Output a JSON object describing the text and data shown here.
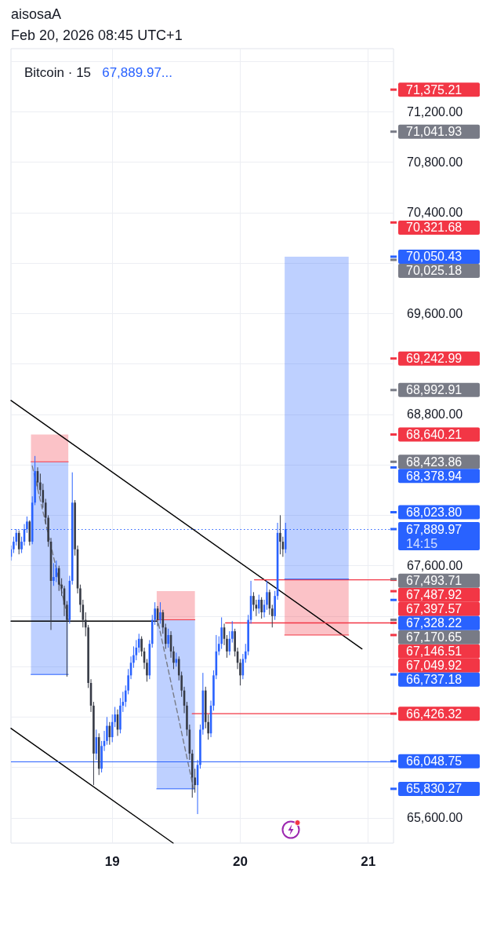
{
  "chart_data": {
    "type": "candlestick",
    "title": "Bitcoin · 15",
    "annotations": [
      "aisosaA",
      "Feb 20, 2026 08:45 UTC+1",
      "67,889.97...",
      "14:15"
    ],
    "xlim": [
      "2026-02-18T05:00",
      "2026-02-21T04:45"
    ],
    "xticks": [
      {
        "value": "2026-02-19",
        "label": "19"
      },
      {
        "value": "2026-02-20",
        "label": "20"
      },
      {
        "value": "2026-02-21",
        "label": "21"
      }
    ],
    "ylim": [
      65400,
      71700
    ],
    "yticks": [
      {
        "value": 71600,
        "label": null
      },
      {
        "value": 71200,
        "label": "71,200.00"
      },
      {
        "value": 70800,
        "label": "70,800.00"
      },
      {
        "value": 70400,
        "label": "70,400.00"
      },
      {
        "value": 70000,
        "label": null
      },
      {
        "value": 69600,
        "label": "69,600.00"
      },
      {
        "value": 69200,
        "label": null
      },
      {
        "value": 68800,
        "label": "68,800.00"
      },
      {
        "value": 68400,
        "label": null
      },
      {
        "value": 68000,
        "label": null
      },
      {
        "value": 67600,
        "label": "67,600.00"
      },
      {
        "value": 67200,
        "label": null
      },
      {
        "value": 66800,
        "label": null
      },
      {
        "value": 66400,
        "label": null
      },
      {
        "value": 66000,
        "label": null
      },
      {
        "value": 65600,
        "label": "65,600.00"
      }
    ],
    "grid": true,
    "ref_lines": [
      {
        "axis": "y",
        "value": 66048.75,
        "color": "#2962ff",
        "line_style": "solid"
      },
      {
        "axis": "y",
        "value": 67889.97,
        "color": "#2962ff",
        "line_style": "dotted"
      }
    ],
    "x": [
      "2026-02-18T05:00",
      "2026-02-18T05:30",
      "2026-02-18T06:00",
      "2026-02-18T06:30",
      "2026-02-18T07:00",
      "2026-02-18T07:30",
      "2026-02-18T08:00",
      "2026-02-18T08:30",
      "2026-02-18T09:00",
      "2026-02-18T09:30",
      "2026-02-18T10:00",
      "2026-02-18T10:30",
      "2026-02-18T11:00",
      "2026-02-18T11:30",
      "2026-02-18T12:00",
      "2026-02-18T12:30",
      "2026-02-18T13:00",
      "2026-02-18T13:30",
      "2026-02-18T14:00",
      "2026-02-18T14:30",
      "2026-02-18T15:00",
      "2026-02-18T15:30",
      "2026-02-18T16:00",
      "2026-02-18T16:30",
      "2026-02-18T17:00",
      "2026-02-18T17:30",
      "2026-02-18T18:00",
      "2026-02-18T18:30",
      "2026-02-18T19:00",
      "2026-02-18T19:30",
      "2026-02-18T20:00",
      "2026-02-18T20:30",
      "2026-02-18T21:00",
      "2026-02-18T21:30",
      "2026-02-18T22:00",
      "2026-02-18T22:30",
      "2026-02-18T23:00",
      "2026-02-18T23:30",
      "2026-02-19T00:00",
      "2026-02-19T00:30",
      "2026-02-19T01:00",
      "2026-02-19T01:30",
      "2026-02-19T02:00",
      "2026-02-19T02:30",
      "2026-02-19T03:00",
      "2026-02-19T03:30",
      "2026-02-19T04:00",
      "2026-02-19T04:30",
      "2026-02-19T05:00",
      "2026-02-19T05:30",
      "2026-02-19T06:00",
      "2026-02-19T06:30",
      "2026-02-19T07:00",
      "2026-02-19T07:30",
      "2026-02-19T08:00",
      "2026-02-19T08:30",
      "2026-02-19T09:00",
      "2026-02-19T09:30",
      "2026-02-19T10:00",
      "2026-02-19T10:30",
      "2026-02-19T11:00",
      "2026-02-19T11:30",
      "2026-02-19T12:00",
      "2026-02-19T12:30",
      "2026-02-19T13:00",
      "2026-02-19T13:30",
      "2026-02-19T14:00",
      "2026-02-19T14:30",
      "2026-02-19T15:00",
      "2026-02-19T15:30",
      "2026-02-19T16:00",
      "2026-02-19T16:30",
      "2026-02-19T17:00",
      "2026-02-19T17:30",
      "2026-02-19T18:00",
      "2026-02-19T18:30",
      "2026-02-19T19:00",
      "2026-02-19T19:30",
      "2026-02-19T20:00",
      "2026-02-19T20:30",
      "2026-02-19T21:00",
      "2026-02-19T21:30",
      "2026-02-19T22:00",
      "2026-02-19T22:30",
      "2026-02-19T23:00",
      "2026-02-19T23:30",
      "2026-02-20T00:00",
      "2026-02-20T00:30",
      "2026-02-20T01:00",
      "2026-02-20T01:30",
      "2026-02-20T02:00",
      "2026-02-20T02:30",
      "2026-02-20T03:00",
      "2026-02-20T03:30",
      "2026-02-20T04:00",
      "2026-02-20T04:30",
      "2026-02-20T05:00",
      "2026-02-20T05:30",
      "2026-02-20T06:00",
      "2026-02-20T06:30",
      "2026-02-20T07:00",
      "2026-02-20T07:30",
      "2026-02-20T08:00",
      "2026-02-20T08:30"
    ],
    "ohlc": [
      [
        67670,
        67760,
        67640,
        67730
      ],
      [
        67730,
        67830,
        67700,
        67790
      ],
      [
        67790,
        67890,
        67760,
        67860
      ],
      [
        67860,
        67880,
        67690,
        67730
      ],
      [
        67730,
        67830,
        67700,
        67790
      ],
      [
        67790,
        67930,
        67760,
        67890
      ],
      [
        67890,
        67990,
        67860,
        67950
      ],
      [
        67950,
        67960,
        67760,
        67790
      ],
      [
        67790,
        68150,
        67770,
        68100
      ],
      [
        68100,
        68470,
        68080,
        68350
      ],
      [
        68350,
        68380,
        68210,
        68260
      ],
      [
        68260,
        68330,
        68150,
        68200
      ],
      [
        68200,
        68250,
        68060,
        68100
      ],
      [
        68100,
        68130,
        67930,
        67980
      ],
      [
        67980,
        68000,
        67750,
        67790
      ],
      [
        67790,
        67820,
        67090,
        67480
      ],
      [
        67480,
        67620,
        67440,
        67510
      ],
      [
        67510,
        67640,
        67470,
        67580
      ],
      [
        67580,
        67600,
        67400,
        67450
      ],
      [
        67450,
        67500,
        67360,
        67420
      ],
      [
        67420,
        67440,
        67200,
        67290
      ],
      [
        67290,
        67320,
        66720,
        67170
      ],
      [
        67170,
        67520,
        67140,
        67480
      ],
      [
        67480,
        68340,
        67450,
        68100
      ],
      [
        68100,
        68120,
        67680,
        67730
      ],
      [
        67730,
        67760,
        67380,
        67420
      ],
      [
        67420,
        67450,
        67230,
        67290
      ],
      [
        67290,
        67330,
        67110,
        67170
      ],
      [
        67170,
        67230,
        67040,
        67110
      ],
      [
        67110,
        67130,
        66630,
        66670
      ],
      [
        66670,
        66700,
        66440,
        66490
      ],
      [
        66490,
        66520,
        65860,
        66110
      ],
      [
        66110,
        66300,
        66060,
        66240
      ],
      [
        66240,
        66270,
        65940,
        65990
      ],
      [
        65990,
        66210,
        65960,
        66170
      ],
      [
        66170,
        66290,
        66130,
        66210
      ],
      [
        66210,
        66400,
        66180,
        66330
      ],
      [
        66330,
        66360,
        66180,
        66240
      ],
      [
        66240,
        66420,
        66200,
        66360
      ],
      [
        66360,
        66480,
        66320,
        66420
      ],
      [
        66420,
        66460,
        66250,
        66300
      ],
      [
        66300,
        66550,
        66270,
        66490
      ],
      [
        66490,
        66600,
        66440,
        66520
      ],
      [
        66520,
        66650,
        66480,
        66610
      ],
      [
        66610,
        66780,
        66580,
        66730
      ],
      [
        66730,
        66880,
        66700,
        66830
      ],
      [
        66830,
        66960,
        66790,
        66890
      ],
      [
        66890,
        67010,
        66850,
        66950
      ],
      [
        66950,
        67060,
        66910,
        67020
      ],
      [
        67020,
        67040,
        66880,
        66920
      ],
      [
        66920,
        66950,
        66780,
        66830
      ],
      [
        66830,
        66860,
        66680,
        66730
      ],
      [
        66730,
        67010,
        66700,
        66980
      ],
      [
        66980,
        67210,
        66950,
        67170
      ],
      [
        67170,
        67310,
        67130,
        67260
      ],
      [
        67260,
        67280,
        67120,
        67170
      ],
      [
        67170,
        67310,
        67140,
        67230
      ],
      [
        67230,
        67250,
        67060,
        67110
      ],
      [
        67110,
        67140,
        66940,
        66980
      ],
      [
        66980,
        67100,
        66950,
        67050
      ],
      [
        67050,
        67080,
        66870,
        66920
      ],
      [
        66920,
        66960,
        66780,
        66830
      ],
      [
        66830,
        66910,
        66800,
        66860
      ],
      [
        66860,
        66880,
        66690,
        66730
      ],
      [
        66730,
        66760,
        66560,
        66610
      ],
      [
        66610,
        66640,
        66430,
        66490
      ],
      [
        66490,
        66520,
        66250,
        66300
      ],
      [
        66300,
        66340,
        66060,
        66110
      ],
      [
        66110,
        66140,
        65760,
        65920
      ],
      [
        65920,
        65990,
        65800,
        65860
      ],
      [
        65860,
        66060,
        65630,
        66020
      ],
      [
        66020,
        66340,
        65990,
        66300
      ],
      [
        66300,
        66750,
        66260,
        66610
      ],
      [
        66610,
        66640,
        66310,
        66360
      ],
      [
        66360,
        66420,
        66220,
        66270
      ],
      [
        66270,
        66530,
        66240,
        66490
      ],
      [
        66490,
        66770,
        66450,
        66730
      ],
      [
        66730,
        67050,
        66700,
        66920
      ],
      [
        66920,
        67040,
        66890,
        66980
      ],
      [
        66980,
        67190,
        66940,
        67110
      ],
      [
        67110,
        67140,
        66970,
        67020
      ],
      [
        67020,
        67050,
        66870,
        66920
      ],
      [
        66920,
        67080,
        66890,
        67020
      ],
      [
        67020,
        67160,
        66990,
        67080
      ],
      [
        67080,
        67100,
        66880,
        66920
      ],
      [
        66920,
        66950,
        66780,
        66830
      ],
      [
        66830,
        66860,
        66650,
        66730
      ],
      [
        66730,
        66900,
        66700,
        66860
      ],
      [
        66860,
        66980,
        66830,
        66920
      ],
      [
        66920,
        67210,
        66890,
        67170
      ],
      [
        67170,
        67480,
        67140,
        67360
      ],
      [
        67360,
        67390,
        67240,
        67290
      ],
      [
        67290,
        67330,
        67200,
        67260
      ],
      [
        67260,
        67370,
        67220,
        67330
      ],
      [
        67330,
        67350,
        67180,
        67230
      ],
      [
        67230,
        67330,
        67190,
        67290
      ],
      [
        67290,
        67480,
        67250,
        67390
      ],
      [
        67390,
        67410,
        67210,
        67260
      ],
      [
        67260,
        67290,
        67110,
        67200
      ],
      [
        67200,
        67400,
        67170,
        67360
      ],
      [
        67360,
        67940,
        67330,
        67860
      ],
      [
        67860,
        68000,
        67690,
        67790
      ],
      [
        67790,
        67830,
        67670,
        67730
      ],
      [
        67730,
        67940,
        67700,
        67889.97
      ]
    ],
    "colors": [
      "#2962ff",
      "#2962ff",
      "#2962ff",
      "#363a45",
      "#2962ff",
      "#2962ff",
      "#2962ff",
      "#363a45",
      "#2962ff",
      "#2962ff",
      "#363a45",
      "#363a45",
      "#363a45",
      "#363a45",
      "#363a45",
      "#363a45",
      "#2962ff",
      "#2962ff",
      "#363a45",
      "#363a45",
      "#363a45",
      "#363a45",
      "#2962ff",
      "#2962ff",
      "#363a45",
      "#363a45",
      "#363a45",
      "#363a45",
      "#363a45",
      "#363a45",
      "#363a45",
      "#363a45",
      "#2962ff",
      "#363a45",
      "#2962ff",
      "#2962ff",
      "#2962ff",
      "#363a45",
      "#2962ff",
      "#2962ff",
      "#363a45",
      "#2962ff",
      "#2962ff",
      "#2962ff",
      "#2962ff",
      "#2962ff",
      "#2962ff",
      "#2962ff",
      "#2962ff",
      "#363a45",
      "#363a45",
      "#363a45",
      "#2962ff",
      "#2962ff",
      "#2962ff",
      "#363a45",
      "#2962ff",
      "#363a45",
      "#363a45",
      "#2962ff",
      "#363a45",
      "#363a45",
      "#2962ff",
      "#363a45",
      "#363a45",
      "#363a45",
      "#363a45",
      "#363a45",
      "#363a45",
      "#363a45",
      "#2962ff",
      "#2962ff",
      "#2962ff",
      "#363a45",
      "#363a45",
      "#2962ff",
      "#2962ff",
      "#2962ff",
      "#2962ff",
      "#2962ff",
      "#363a45",
      "#363a45",
      "#2962ff",
      "#2962ff",
      "#363a45",
      "#363a45",
      "#363a45",
      "#2962ff",
      "#2962ff",
      "#2962ff",
      "#2962ff",
      "#363a45",
      "#363a45",
      "#2962ff",
      "#363a45",
      "#2962ff",
      "#2962ff",
      "#363a45",
      "#363a45",
      "#2962ff",
      "#2962ff",
      "#363a45",
      "#363a45",
      "#2962ff"
    ],
    "series": [
      {
        "type": "line",
        "x": [
          "2026-02-18T08:45",
          "2026-02-18T15:45"
        ],
        "values": [
          68423.86,
          68423.86
        ],
        "upper": [
          68640.21,
          68640.21
        ],
        "lower": [
          68423.86,
          68423.86
        ],
        "color": "#f23645"
      },
      {
        "type": "line",
        "x": [
          "2026-02-18T08:45",
          "2026-02-18T15:45"
        ],
        "values": [
          66737.18,
          66737.18
        ],
        "upper": [
          68423.86,
          68423.86
        ],
        "lower": [
          66737.18,
          66737.18
        ],
        "color": "#2962ff"
      },
      {
        "type": "line",
        "x": [
          "2026-02-19T08:20",
          "2026-02-19T15:30"
        ],
        "values": [
          67170.65,
          67170.65
        ],
        "upper": [
          67397.57,
          67397.57
        ],
        "lower": [
          67170.65,
          67170.65
        ],
        "color": "#f23645"
      },
      {
        "type": "line",
        "x": [
          "2026-02-19T08:20",
          "2026-02-19T15:30"
        ],
        "values": [
          65830.27,
          65830.27
        ],
        "upper": [
          67170.65,
          67170.65
        ],
        "lower": [
          65830.27,
          65830.27
        ],
        "color": "#2962ff"
      },
      {
        "type": "line",
        "x": [
          "2026-02-20T08:20",
          "2026-02-20T20:20"
        ],
        "values": [
          67493.71,
          67493.71
        ],
        "upper": [
          70050.43,
          70050.43
        ],
        "lower": [
          67493.71,
          67493.71
        ],
        "color": "#2962ff"
      },
      {
        "type": "line",
        "x": [
          "2026-02-20T08:20",
          "2026-02-20T20:20"
        ],
        "values": [
          67049.92,
          67049.92
        ],
        "upper": [
          67493.71,
          67493.71
        ],
        "lower": [
          67049.92,
          67049.92
        ],
        "color": "#f23645"
      },
      {
        "type": "line",
        "x": [
          "2026-02-18T05:00",
          "2026-02-20T22:50"
        ],
        "values": [
          68910,
          66940
        ],
        "color": "#000000"
      },
      {
        "type": "line",
        "x": [
          "2026-02-18T05:00",
          "2026-02-19T11:25"
        ],
        "values": [
          66310,
          65400
        ],
        "color": "#000000"
      },
      {
        "type": "line",
        "x": [
          "2026-02-18T05:00",
          "2026-02-19T08:20"
        ],
        "values": [
          67160,
          67160
        ],
        "color": "#000000"
      },
      {
        "type": "line",
        "x": [
          "2026-02-20T02:40",
          "2026-02-21T04:45"
        ],
        "values": [
          67487.92,
          67487.92
        ],
        "color": "#f23645"
      },
      {
        "type": "line",
        "x": [
          "2026-02-19T21:15",
          "2026-02-21T04:45"
        ],
        "values": [
          67146.51,
          67146.51
        ],
        "color": "#f23645"
      },
      {
        "type": "line",
        "x": [
          "2026-02-19T15:00",
          "2026-02-21T04:45"
        ],
        "values": [
          66426.32,
          66426.32
        ],
        "color": "#f23645"
      },
      {
        "type": "line",
        "x": [
          "2026-02-18T09:00",
          "2026-02-18T15:45"
        ],
        "values": [
          68390,
          67170
        ],
        "color": "#787b86",
        "line_style": "dashed"
      },
      {
        "type": "line",
        "x": [
          "2026-02-19T08:40",
          "2026-02-19T15:15"
        ],
        "values": [
          67140,
          65830
        ],
        "color": "#787b86",
        "line_style": "dashed"
      },
      {
        "type": "scatter",
        "color": "#f23645",
        "x": [
          "2026-02-21T04:45",
          "2026-02-21T04:45",
          "2026-02-21T04:45",
          "2026-02-21T04:45",
          "2026-02-21T04:45",
          "2026-02-21T04:45",
          "2026-02-21T04:45",
          "2026-02-21T04:45",
          "2026-02-21T04:45"
        ],
        "values": [
          71375.21,
          70321.68,
          69242.99,
          68640.21,
          67487.92,
          67397.57,
          67146.51,
          67049.92,
          66426.32
        ],
        "value_labels": [
          "71,375.21",
          "70,321.68",
          "69,242.99",
          "68,640.21",
          "67,487.92",
          "67,397.57",
          "67,146.51",
          "67,049.92",
          "66,426.32"
        ]
      },
      {
        "type": "scatter",
        "color": "#787b86",
        "x": [
          "2026-02-21T04:45",
          "2026-02-21T04:45",
          "2026-02-21T04:45",
          "2026-02-21T04:45",
          "2026-02-21T04:45",
          "2026-02-21T04:45"
        ],
        "values": [
          71041.93,
          70025.18,
          68992.91,
          68423.86,
          67493.71,
          67170.65
        ],
        "value_labels": [
          "71,041.93",
          "70,025.18",
          "68,992.91",
          "68,423.86",
          "67,493.71",
          "67,170.65"
        ]
      },
      {
        "type": "scatter",
        "color": "#2962ff",
        "x": [
          "2026-02-21T04:45",
          "2026-02-21T04:45",
          "2026-02-21T04:45",
          "2026-02-21T04:45",
          "2026-02-21T04:45",
          "2026-02-21T04:45",
          "2026-02-21T04:45",
          "2026-02-21T04:45"
        ],
        "values": [
          70050.43,
          68378.94,
          68023.8,
          67889.97,
          67328.22,
          66737.18,
          66048.75,
          65830.27
        ],
        "value_labels": [
          "70,050.43",
          "68,378.94",
          "68,023.80",
          "67,889.97",
          "67,328.22",
          "66,737.18",
          "66,048.75",
          "65,830.27"
        ]
      }
    ]
  }
}
